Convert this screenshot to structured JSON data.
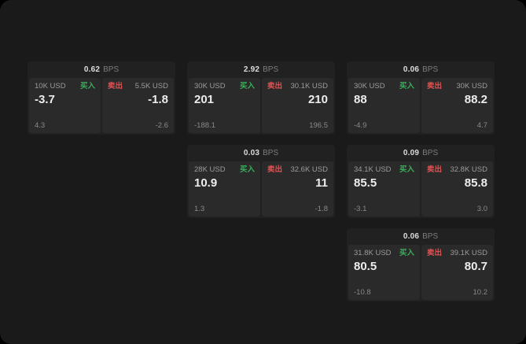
{
  "labels": {
    "buy": "买入",
    "sell": "卖出",
    "bps": "BPS"
  },
  "colors": {
    "buy_accent": "#3aae5c",
    "sell_accent": "#e05252",
    "window_bg": "#1a1a1a",
    "card_bg": "#212121",
    "panel_bg": "#2a2a2a"
  },
  "cards": [
    {
      "bps": "0.62",
      "buy": {
        "size": "10K USD",
        "price": "-3.7",
        "sub": "4.3"
      },
      "sell": {
        "size": "5.5K USD",
        "price": "-1.8",
        "sub": "-2.6"
      }
    },
    {
      "bps": "2.92",
      "buy": {
        "size": "30K USD",
        "price": "201",
        "sub": "-188.1"
      },
      "sell": {
        "size": "30.1K USD",
        "price": "210",
        "sub": "196.5"
      }
    },
    {
      "bps": "0.06",
      "buy": {
        "size": "30K USD",
        "price": "88",
        "sub": "-4.9"
      },
      "sell": {
        "size": "30K USD",
        "price": "88.2",
        "sub": "4.7"
      }
    },
    {
      "bps": "0.03",
      "buy": {
        "size": "28K USD",
        "price": "10.9",
        "sub": "1.3"
      },
      "sell": {
        "size": "32.6K USD",
        "price": "11",
        "sub": "-1.8"
      }
    },
    {
      "bps": "0.09",
      "buy": {
        "size": "34.1K USD",
        "price": "85.5",
        "sub": "-3.1"
      },
      "sell": {
        "size": "32.8K USD",
        "price": "85.8",
        "sub": "3.0"
      }
    },
    {
      "bps": "0.06",
      "buy": {
        "size": "31.8K USD",
        "price": "80.5",
        "sub": "-10.8"
      },
      "sell": {
        "size": "39.1K USD",
        "price": "80.7",
        "sub": "10.2"
      }
    }
  ]
}
